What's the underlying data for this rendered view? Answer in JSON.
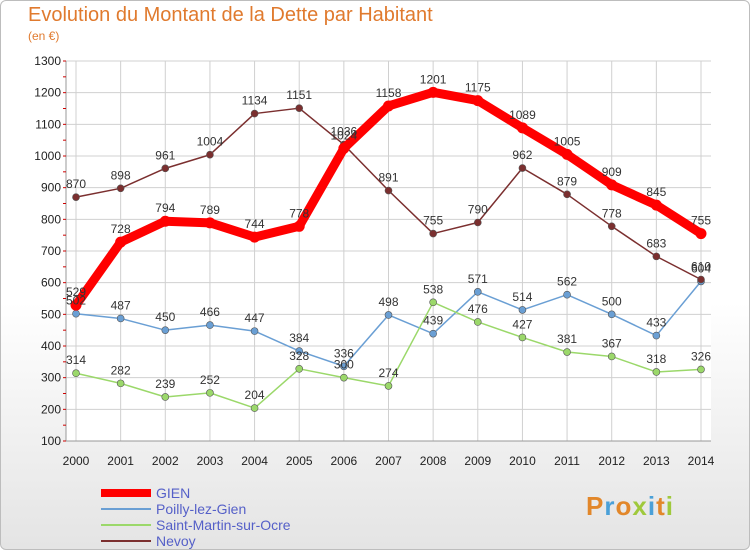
{
  "title": "Evolution du Montant de la Dette par Habitant",
  "unit": "(en €)",
  "logo": {
    "letters": [
      {
        "c": "P",
        "color": "#e2872a"
      },
      {
        "c": "r",
        "color": "#4aa0d8"
      },
      {
        "c": "o",
        "color": "#e2872a"
      },
      {
        "c": "x",
        "color": "#9fc93c"
      },
      {
        "c": "i",
        "color": "#4aa0d8"
      },
      {
        "c": "t",
        "color": "#e2872a"
      },
      {
        "c": "i",
        "color": "#9fc93c"
      }
    ]
  },
  "chart_data": {
    "type": "line",
    "title": "Evolution du Montant de la Dette par Habitant",
    "ylabel": "(en €)",
    "x": [
      "2000",
      "2001",
      "2002",
      "2003",
      "2004",
      "2005",
      "2006",
      "2007",
      "2008",
      "2009",
      "2010",
      "2011",
      "2012",
      "2013",
      "2014"
    ],
    "ylim": [
      100,
      1300
    ],
    "yticks": [
      100,
      200,
      300,
      400,
      500,
      600,
      700,
      800,
      900,
      1000,
      1100,
      1200,
      1300
    ],
    "grid": true,
    "legend_position": "bottom-left",
    "series": [
      {
        "name": "GIEN",
        "color": "#ff0000",
        "values": [
          529,
          728,
          794,
          789,
          744,
          778,
          1024,
          1158,
          1201,
          1175,
          1089,
          1005,
          909,
          845,
          755
        ]
      },
      {
        "name": "Poilly-lez-Gien",
        "color": "#6a9fd4",
        "values": [
          502,
          487,
          450,
          466,
          447,
          384,
          336,
          498,
          439,
          571,
          514,
          562,
          500,
          433,
          604
        ]
      },
      {
        "name": "Saint-Martin-sur-Ocre",
        "color": "#9bd86a",
        "values": [
          314,
          282,
          239,
          252,
          204,
          328,
          300,
          274,
          538,
          476,
          427,
          381,
          367,
          318,
          326
        ]
      },
      {
        "name": "Nevoy",
        "color": "#7b2f2f",
        "values": [
          870,
          898,
          961,
          1004,
          1134,
          1151,
          1036,
          891,
          755,
          790,
          962,
          879,
          778,
          683,
          610
        ]
      }
    ]
  }
}
